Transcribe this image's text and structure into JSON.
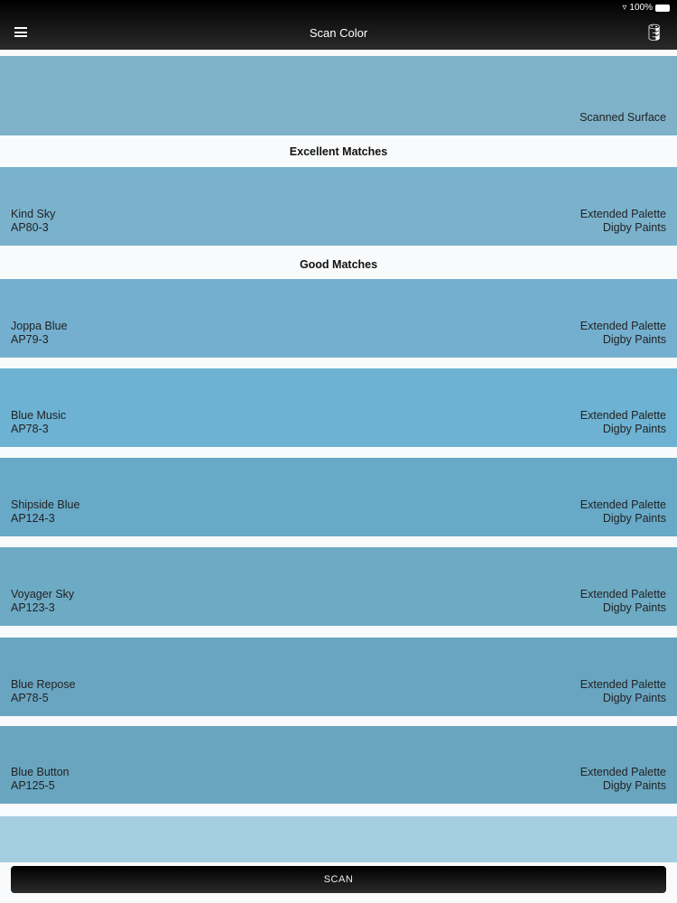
{
  "status": {
    "battery": "100%"
  },
  "header": {
    "title": "Scan Color",
    "menu_icon": "hamburger-icon",
    "action_icon": "paint-bucket-icon"
  },
  "scanned": {
    "label": "Scanned Surface",
    "color": "#7fb1c9"
  },
  "sections": {
    "excellent": "Excellent Matches",
    "good": "Good Matches"
  },
  "excellent": [
    {
      "name": "Kind Sky",
      "code": "AP80-3",
      "palette": "Extended Palette",
      "brand": "Digby Paints",
      "color": "#7ab2cc"
    }
  ],
  "good": [
    {
      "name": "Joppa Blue",
      "code": "AP79-3",
      "palette": "Extended Palette",
      "brand": "Digby Paints",
      "color": "#74afcf"
    },
    {
      "name": "Blue Music",
      "code": "AP78-3",
      "palette": "Extended Palette",
      "brand": "Digby Paints",
      "color": "#6db2d2"
    },
    {
      "name": "Shipside Blue",
      "code": "AP124-3",
      "palette": "Extended Palette",
      "brand": "Digby Paints",
      "color": "#67a9c7"
    },
    {
      "name": "Voyager Sky",
      "code": "AP123-3",
      "palette": "Extended Palette",
      "brand": "Digby Paints",
      "color": "#6daac4"
    },
    {
      "name": "Blue Repose",
      "code": "AP78-5",
      "palette": "Extended Palette",
      "brand": "Digby Paints",
      "color": "#69a5c1"
    },
    {
      "name": "Blue Button",
      "code": "AP125-5",
      "palette": "Extended Palette",
      "brand": "Digby Paints",
      "color": "#69a5bf"
    },
    {
      "color": "#a5cde0"
    }
  ],
  "scan_button": "SCAN"
}
